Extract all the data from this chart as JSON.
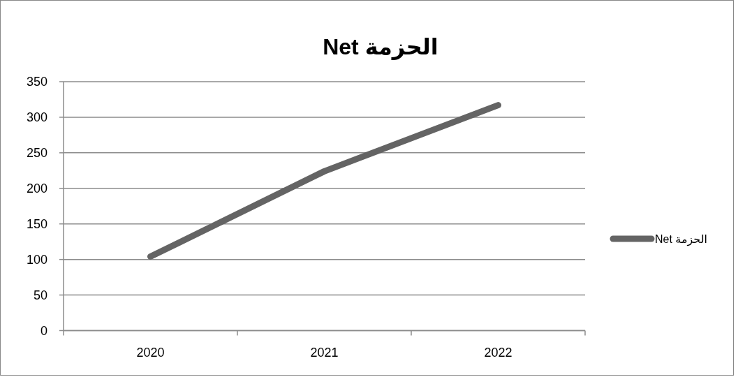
{
  "chart_data": {
    "type": "line",
    "title": "الحزمة Net",
    "categories": [
      "2020",
      "2021",
      "2022"
    ],
    "series": [
      {
        "name": "الحزمة Net",
        "color": "#646464",
        "values": [
          104,
          224,
          317
        ]
      }
    ],
    "ylim": [
      0,
      350
    ],
    "yticks": [
      0,
      50,
      100,
      150,
      200,
      250,
      300,
      350
    ],
    "grid": "y",
    "legend": "right",
    "marker": "none",
    "line_style": "solid"
  }
}
